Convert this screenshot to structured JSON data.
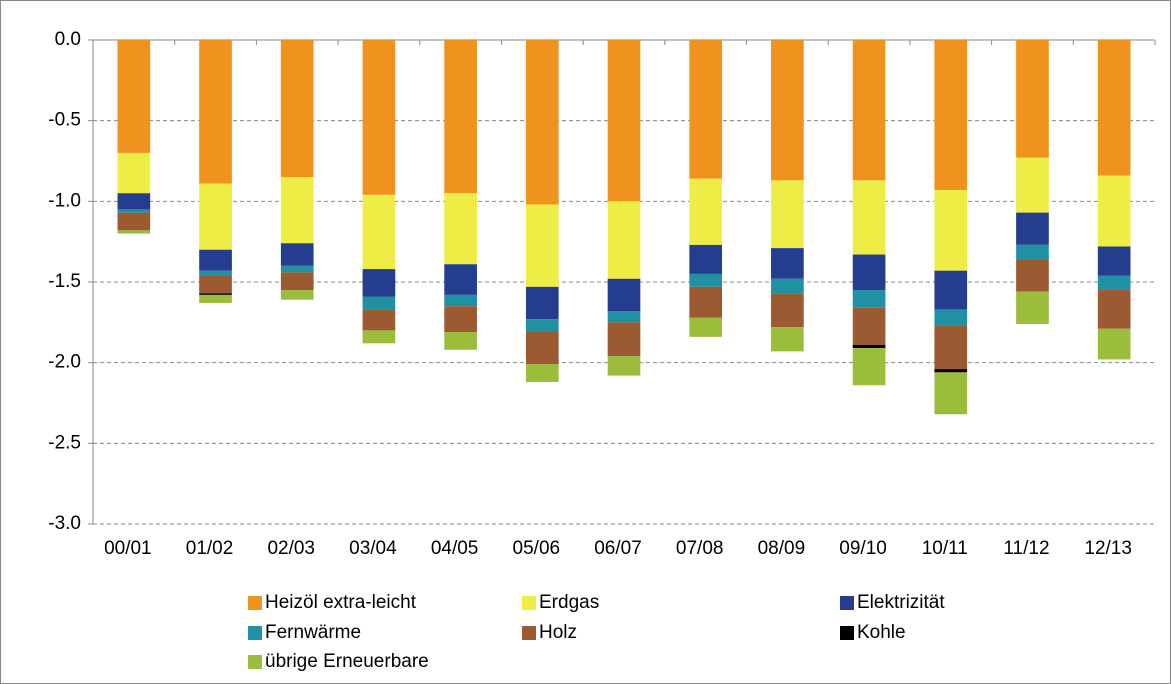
{
  "chart_data": {
    "type": "bar",
    "stacked": true,
    "categories": [
      "00/01",
      "01/02",
      "02/03",
      "03/04",
      "04/05",
      "05/06",
      "06/07",
      "07/08",
      "08/09",
      "09/10",
      "10/11",
      "11/12",
      "12/13"
    ],
    "series": [
      {
        "name": "Heizöl extra-leicht",
        "color": "#f0931e",
        "values": [
          -0.7,
          -0.89,
          -0.85,
          -0.96,
          -0.95,
          -1.02,
          -1.0,
          -0.86,
          -0.87,
          -0.87,
          -0.93,
          -0.73,
          -0.84
        ]
      },
      {
        "name": "Erdgas",
        "color": "#eded45",
        "values": [
          -0.25,
          -0.41,
          -0.41,
          -0.46,
          -0.44,
          -0.51,
          -0.48,
          -0.41,
          -0.42,
          -0.46,
          -0.5,
          -0.34,
          -0.44
        ]
      },
      {
        "name": "Elektrizität",
        "color": "#253d8f",
        "values": [
          -0.1,
          -0.13,
          -0.14,
          -0.17,
          -0.19,
          -0.2,
          -0.2,
          -0.18,
          -0.19,
          -0.22,
          -0.24,
          -0.2,
          -0.18
        ]
      },
      {
        "name": "Fernwärme",
        "color": "#1f91a3",
        "values": [
          -0.02,
          -0.03,
          -0.04,
          -0.08,
          -0.07,
          -0.08,
          -0.07,
          -0.08,
          -0.09,
          -0.11,
          -0.1,
          -0.09,
          -0.09
        ]
      },
      {
        "name": "Holz",
        "color": "#9b5a32",
        "values": [
          -0.11,
          -0.11,
          -0.11,
          -0.13,
          -0.16,
          -0.2,
          -0.21,
          -0.19,
          -0.21,
          -0.23,
          -0.27,
          -0.2,
          -0.24
        ]
      },
      {
        "name": "Kohle",
        "color": "#000000",
        "values": [
          0,
          -0.01,
          0,
          0,
          0,
          0,
          0,
          0,
          0,
          -0.02,
          -0.02,
          0,
          0
        ]
      },
      {
        "name": "übrige Erneuerbare",
        "color": "#9bbd3c",
        "values": [
          -0.02,
          -0.05,
          -0.06,
          -0.08,
          -0.11,
          -0.11,
          -0.12,
          -0.12,
          -0.15,
          -0.23,
          -0.26,
          -0.2,
          -0.19
        ]
      }
    ],
    "ylim": [
      -3.0,
      0
    ],
    "yticks": [
      {
        "value": 0,
        "label": "0.0"
      },
      -0.5,
      {
        "value": -1,
        "label": "-1.0"
      },
      -1.5,
      {
        "value": -2,
        "label": "-2.0"
      },
      -2.5,
      {
        "value": -3,
        "label": "-3.0"
      }
    ],
    "grid": true,
    "legend": "bottom"
  }
}
